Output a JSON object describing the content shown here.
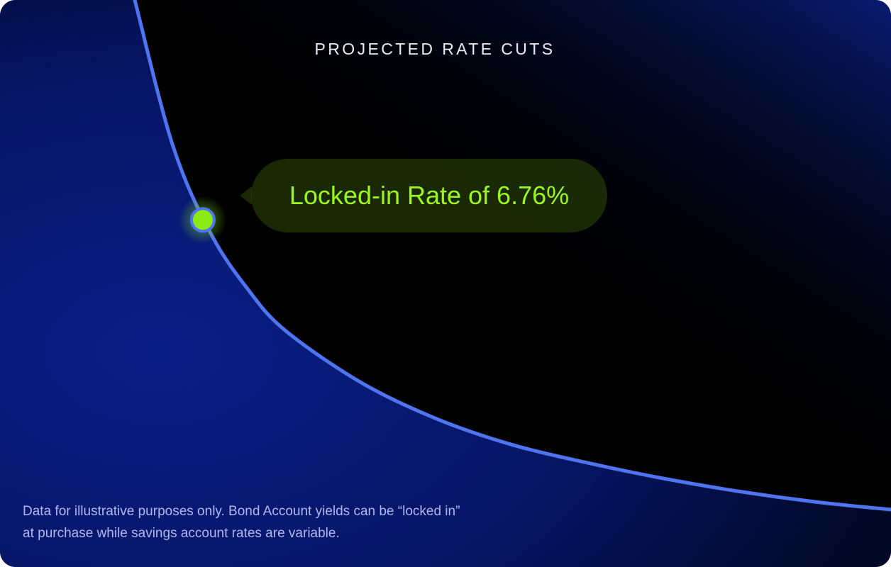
{
  "chart_data": {
    "type": "area",
    "title": "PROJECTED RATE CUTS",
    "xlabel": "",
    "ylabel": "",
    "grid": false,
    "legend": "none",
    "series": [
      {
        "name": "",
        "x": [
          0,
          0.05,
          0.1,
          0.15,
          0.2,
          0.3,
          0.4,
          0.5,
          0.6,
          0.7,
          0.8,
          0.9,
          1.0
        ],
        "values": [
          1.0,
          0.72,
          0.55,
          0.44,
          0.36,
          0.26,
          0.19,
          0.14,
          0.105,
          0.075,
          0.05,
          0.03,
          0.015
        ]
      }
    ],
    "annotations": [
      {
        "text": "Locked-in Rate of 6.76%",
        "marker_x": 0.09,
        "marker_y": 0.575
      }
    ]
  },
  "footnote": {
    "line1": "Data for illustrative purposes only. Bond Account yields can be “locked in”",
    "line2": "at purchase while savings account rates are variable."
  },
  "colors": {
    "background": "#000000",
    "area_fill": "#071a78",
    "curve": "#4f74f0",
    "marker": "#8bea13",
    "marker_ring": "#4f74f0",
    "callout_text": "#9cf51c",
    "guide_line": "#8bea13"
  }
}
